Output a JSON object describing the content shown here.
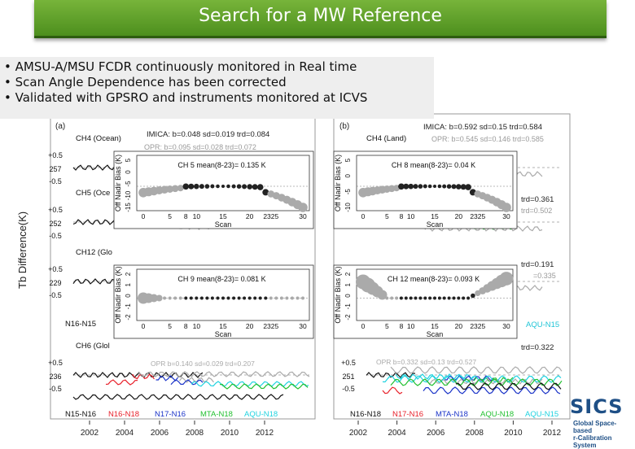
{
  "slide": {
    "title": "Search for a MW Reference",
    "bullets": [
      "• AMSU-A/MSU FCDR  continuously monitored in Real time",
      "• Scan Angle  Dependence has been corrected",
      "• Validated with GPSRO and instruments monitored at ICVS"
    ]
  },
  "figure": {
    "panel_a_label": "(a)",
    "panel_b_label": "(b)",
    "y_label": "Tb Difference(K)",
    "x_years": [
      "2002",
      "2004",
      "2006",
      "2008",
      "2010",
      "2012"
    ],
    "left": {
      "strips": [
        {
          "channel": "CH4 (Ocean)",
          "ticks": [
            "+0.5",
            "257",
            "-0.5"
          ]
        },
        {
          "channel": "CH5 (Oce",
          "ticks": [
            "+0.5",
            "252",
            "-0.5"
          ]
        },
        {
          "channel": "CH12 (Glo",
          "ticks": [
            "+0.5",
            "229",
            "-0.5"
          ]
        },
        {
          "channel": "CH6 (Glol",
          "ticks": [
            "+0.5",
            "236",
            "-0.5"
          ]
        }
      ],
      "stats_line1": "IMICA: b=0.048 sd=0.019 trd=0.084",
      "stats_line2": "OPR: b=0.095 sd=0.028 trd=0.072",
      "stats_bottom": "OPR b=0.140 sd=0.029 trd=0.207",
      "pair_n16_n15": "N16-N15",
      "legend": [
        "N15-N16",
        "N16-N18",
        "N17-N16",
        "MTA-N18",
        "AQU-N18"
      ]
    },
    "right": {
      "strips": [
        {
          "channel": "CH4 (Land)",
          "ticks": []
        },
        {
          "channel": "",
          "ticks": []
        },
        {
          "channel": "",
          "ticks": []
        },
        {
          "channel": "",
          "ticks": [
            "+0.5",
            "251",
            "-0.5"
          ]
        }
      ],
      "stats_line1": "IMICA: b=0.592 sd=0.15 trd=0.584",
      "stats_line2": "OPR: b=0.545 sd=0.146 trd=0.585",
      "trd_1": "trd=0.361",
      "trd_1b": "trd=0.502",
      "trd_2": "trd=0.191",
      "trd_2b": "=0.335",
      "trd_3": "trd=0.322",
      "stats_bottom": "OPR b=0.332 sd=0.13 trd=0.527",
      "aqu_label": "AQU-N15",
      "legend": [
        "N16-N18",
        "N17-N16",
        "MTA-N18",
        "AQU-N18",
        "AQU-N15"
      ]
    },
    "insets": [
      {
        "title": "CH 5 mean(8-23)= 0.135 K",
        "ylabel": "Off Nadir Bias (K)",
        "yticks": [
          "5",
          "0",
          "-5",
          "-10",
          "-15"
        ],
        "xticks": [
          "0",
          "5",
          "8",
          "10",
          "15",
          "20",
          "2325",
          "30"
        ],
        "xlabel": "Scan"
      },
      {
        "title": "CH 8 mean(8-23)= 0.04 K",
        "ylabel": "Off Nadir Bias (K)",
        "yticks": [
          "5",
          "0",
          "-5",
          "-10"
        ],
        "xticks": [
          "0",
          "5",
          "8",
          "10",
          "15",
          "20",
          "2325",
          "30"
        ],
        "xlabel": "Scan"
      },
      {
        "title": "CH 9 mean(8-23)= 0.081 K",
        "ylabel": "Off Nadir Bias (K)",
        "yticks": [
          "2",
          "1",
          "0",
          "-1",
          "-2"
        ],
        "xticks": [
          "0",
          "5",
          "8",
          "10",
          "15",
          "20",
          "2325",
          "30"
        ],
        "xlabel": "Scan"
      },
      {
        "title": "CH 12 mean(8-23)= 0.093 K",
        "ylabel": "Off Nadir Bias (K)",
        "yticks": [
          "2",
          "1",
          "0",
          "-1",
          "-2"
        ],
        "xticks": [
          "0",
          "5",
          "8",
          "10",
          "15",
          "20",
          "2325",
          "30"
        ],
        "xlabel": "Scan"
      }
    ],
    "colors": {
      "black": "#111111",
      "red": "#e8202a",
      "blue": "#1a33c8",
      "green": "#22c030",
      "cyan": "#21d3e0",
      "gray": "#aaaaaa"
    }
  },
  "logo": {
    "text": "SICS",
    "sub1": "Global Space-based",
    "sub2": "r-Calibration System"
  }
}
